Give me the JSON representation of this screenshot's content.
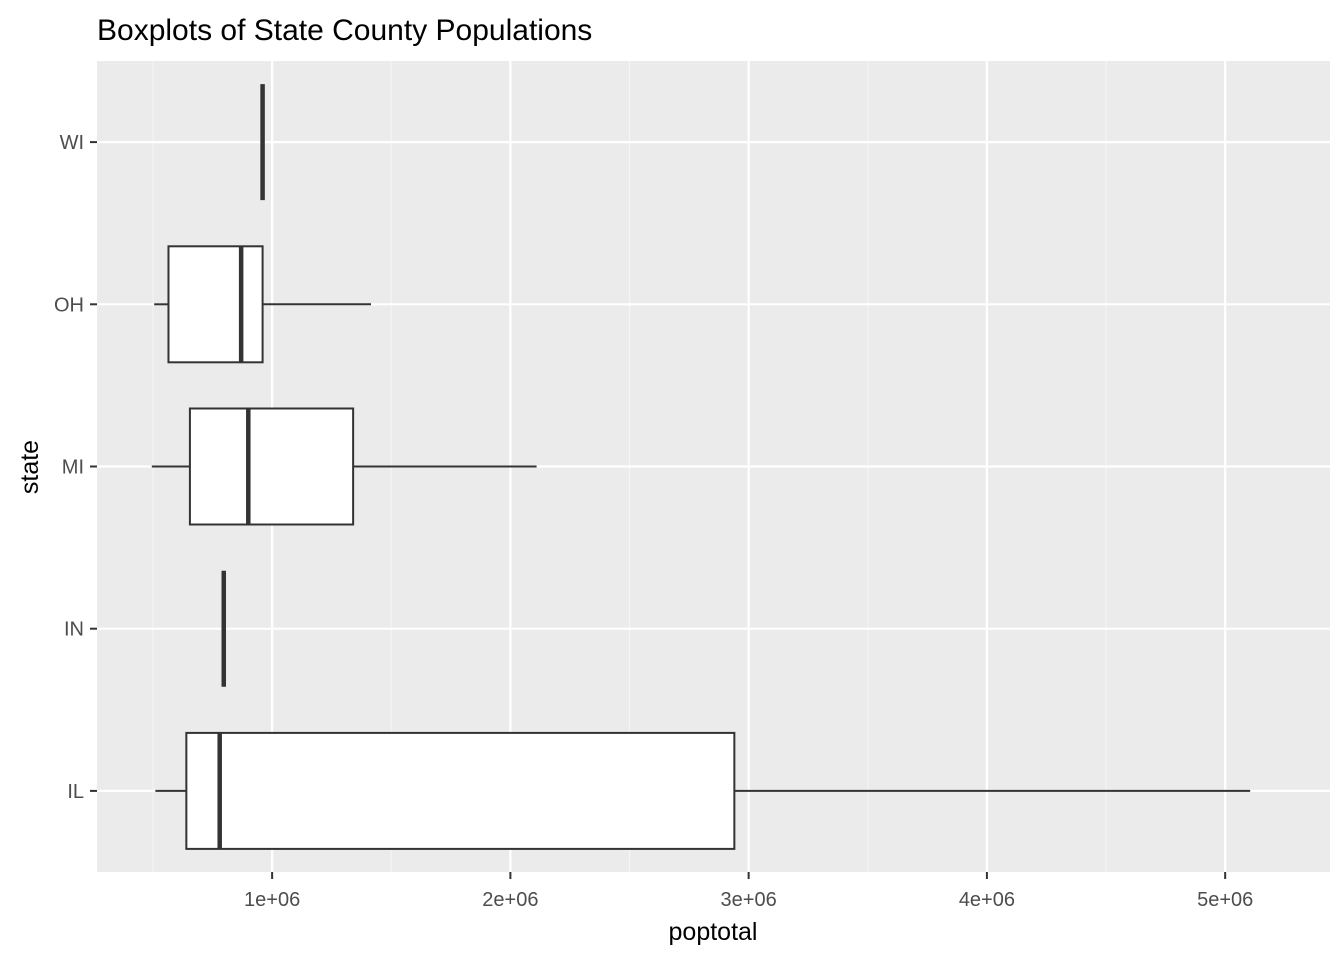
{
  "chart_data": {
    "type": "boxplot",
    "title": "Boxplots of State County Populations",
    "xlabel": "poptotal",
    "ylabel": "state",
    "xlim": [
      265000,
      5440000
    ],
    "x_ticks": [
      1000000,
      2000000,
      3000000,
      4000000,
      5000000
    ],
    "x_tick_labels": [
      "1e+06",
      "2e+06",
      "3e+06",
      "4e+06",
      "5e+06"
    ],
    "categories": [
      "IL",
      "IN",
      "MI",
      "OH",
      "WI"
    ],
    "boxes": [
      {
        "category": "IL",
        "whisker_low": 510000,
        "q1": 640000,
        "median": 780000,
        "q3": 2940000,
        "whisker_high": 5105000
      },
      {
        "category": "IN",
        "whisker_low": 797000,
        "q1": 797000,
        "median": 797000,
        "q3": 797000,
        "whisker_high": 797000
      },
      {
        "category": "MI",
        "whisker_low": 495000,
        "q1": 655000,
        "median": 900000,
        "q3": 1340000,
        "whisker_high": 2110000
      },
      {
        "category": "OH",
        "whisker_low": 505000,
        "q1": 565000,
        "median": 870000,
        "q3": 960000,
        "whisker_high": 1415000
      },
      {
        "category": "WI",
        "whisker_low": 960000,
        "q1": 960000,
        "median": 960000,
        "q3": 960000,
        "whisker_high": 960000
      }
    ],
    "grid": true,
    "legend": "none",
    "colors": {
      "panel_background": "#ebebeb",
      "grid_major": "#ffffff",
      "grid_minor": "#f5f5f5",
      "box_fill": "#ffffff",
      "box_stroke": "#333333",
      "tick_mark": "#333333"
    }
  }
}
